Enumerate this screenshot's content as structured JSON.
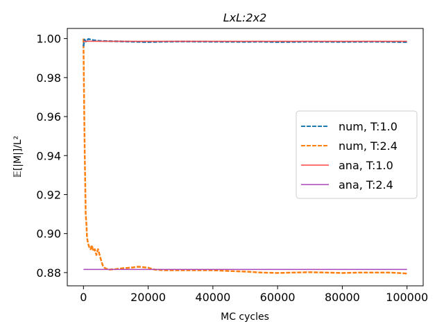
{
  "chart_data": {
    "type": "line",
    "title": "LxL:2x2",
    "xlabel": "MC cycles",
    "ylabel": "𝔼[|M|]/L²",
    "xlim": [
      -5000,
      105000
    ],
    "ylim": [
      0.8732,
      1.0052
    ],
    "xticks": [
      0,
      20000,
      40000,
      60000,
      80000,
      100000
    ],
    "xtick_labels": [
      "0",
      "20000",
      "40000",
      "60000",
      "80000",
      "100000"
    ],
    "yticks": [
      0.88,
      0.9,
      0.92,
      0.94,
      0.96,
      0.98,
      1.0
    ],
    "ytick_labels": [
      "0.88",
      "0.90",
      "0.92",
      "0.94",
      "0.96",
      "0.98",
      "1.00"
    ],
    "grid": false,
    "legend_position": "center-right",
    "series": [
      {
        "name": "num, T:1.0",
        "style": "dashed",
        "color": "#1f77b4",
        "x": [
          0,
          300,
          800,
          1500,
          3000,
          5000,
          10000,
          15000,
          20000,
          25000,
          30000,
          40000,
          50000,
          55000,
          60000,
          65000,
          70000,
          80000,
          90000,
          95000,
          100000
        ],
        "y": [
          0.996,
          0.9995,
          0.9985,
          0.9998,
          0.9992,
          0.9988,
          0.9986,
          0.9984,
          0.9982,
          0.9984,
          0.9985,
          0.9984,
          0.9983,
          0.9984,
          0.9982,
          0.9983,
          0.9984,
          0.9983,
          0.9984,
          0.9983,
          0.9982
        ]
      },
      {
        "name": "num, T:2.4",
        "style": "dashed",
        "color": "#ff7f0e",
        "x": [
          0,
          50,
          150,
          250,
          400,
          500,
          700,
          900,
          1100,
          1400,
          1800,
          2200,
          2600,
          3000,
          3500,
          4000,
          4500,
          5000,
          5500,
          6000,
          6500,
          7000,
          8000,
          10000,
          12000,
          15000,
          17000,
          20000,
          22000,
          25000,
          30000,
          35000,
          40000,
          45000,
          50000,
          55000,
          60000,
          65000,
          70000,
          75000,
          80000,
          85000,
          90000,
          95000,
          100000
        ],
        "y": [
          1.0,
          0.99,
          0.975,
          0.96,
          0.94,
          0.93,
          0.91,
          0.905,
          0.898,
          0.895,
          0.893,
          0.892,
          0.894,
          0.891,
          0.892,
          0.889,
          0.892,
          0.889,
          0.886,
          0.8835,
          0.8825,
          0.882,
          0.8815,
          0.8818,
          0.8822,
          0.8826,
          0.883,
          0.8825,
          0.8815,
          0.8812,
          0.8812,
          0.8812,
          0.8812,
          0.8808,
          0.8805,
          0.88,
          0.8798,
          0.88,
          0.8802,
          0.88,
          0.8798,
          0.88,
          0.88,
          0.88,
          0.8795
        ]
      },
      {
        "name": "ana, T:1.0",
        "style": "solid",
        "color": "#ff4444",
        "x": [
          0,
          100000
        ],
        "y": [
          0.9986,
          0.9986
        ]
      },
      {
        "name": "ana, T:2.4",
        "style": "solid",
        "color": "#aa44bb",
        "x": [
          0,
          100000
        ],
        "y": [
          0.8816,
          0.8816
        ]
      }
    ]
  }
}
